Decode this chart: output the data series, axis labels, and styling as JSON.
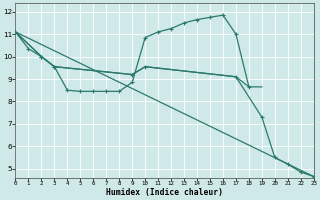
{
  "xlabel": "Humidex (Indice chaleur)",
  "bg_color": "#cfe8e8",
  "grid_color": "#ffffff",
  "line_color": "#2a7a6a",
  "xlim": [
    0,
    23
  ],
  "ylim": [
    4.6,
    12.4
  ],
  "xticks": [
    0,
    1,
    2,
    3,
    4,
    5,
    6,
    7,
    8,
    9,
    10,
    11,
    12,
    13,
    14,
    15,
    16,
    17,
    18,
    19,
    20,
    21,
    22,
    23
  ],
  "yticks": [
    5,
    6,
    7,
    8,
    9,
    10,
    11,
    12
  ],
  "curve_x": [
    0,
    1,
    2,
    3,
    4,
    5,
    6,
    7,
    8,
    9,
    10,
    11,
    12,
    13,
    14,
    15,
    16,
    17,
    18
  ],
  "curve_y": [
    11.1,
    10.35,
    10.0,
    9.55,
    8.5,
    8.45,
    8.45,
    8.45,
    8.45,
    8.85,
    10.85,
    11.1,
    11.25,
    11.5,
    11.65,
    11.75,
    11.85,
    11.0,
    8.65
  ],
  "line2_x": [
    0,
    2,
    3,
    9,
    10,
    17,
    18,
    19
  ],
  "line2_y": [
    11.1,
    10.0,
    9.55,
    9.2,
    9.55,
    9.1,
    8.65,
    8.65
  ],
  "line3_x": [
    0,
    2,
    3,
    9,
    10,
    17,
    19,
    20,
    21,
    22,
    23
  ],
  "line3_y": [
    11.1,
    10.0,
    9.55,
    9.2,
    9.55,
    9.1,
    7.3,
    5.5,
    5.2,
    4.85,
    4.65
  ],
  "line4_x": [
    0,
    23
  ],
  "line4_y": [
    11.1,
    4.65
  ]
}
